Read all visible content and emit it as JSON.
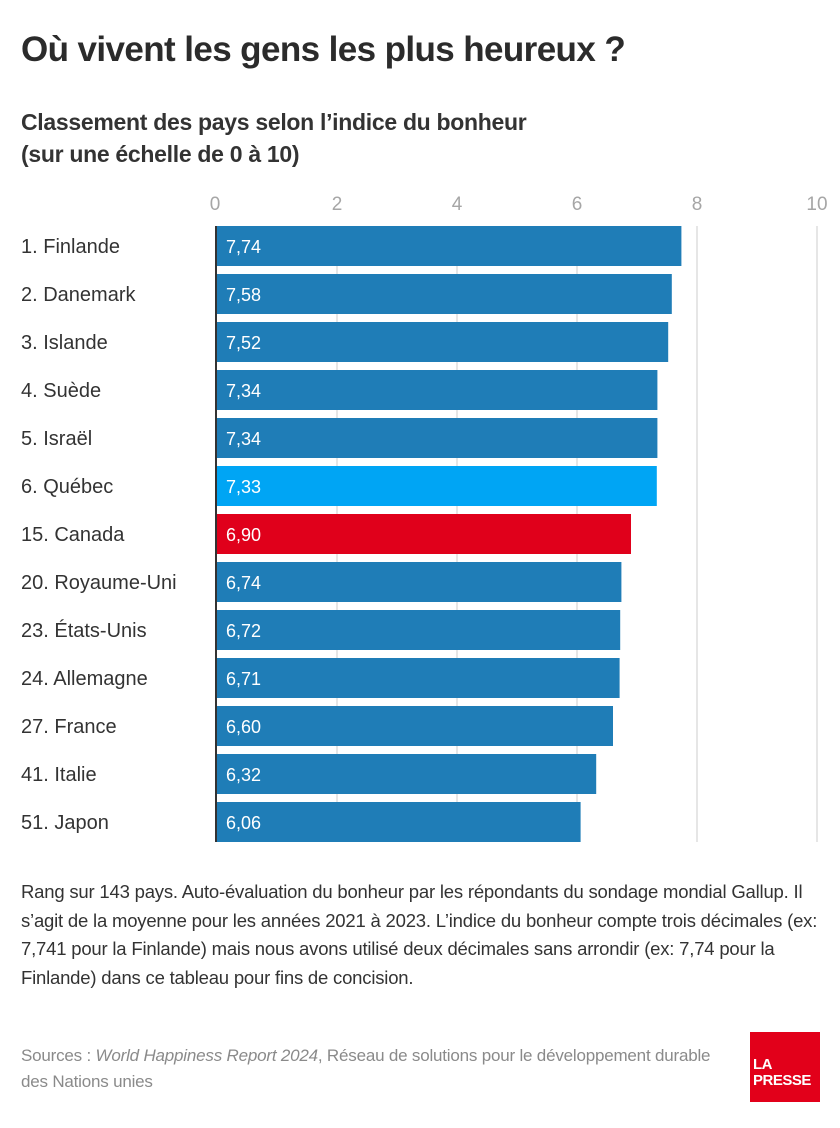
{
  "header": {
    "title": "Où vivent les gens les plus heureux ?",
    "subtitle_line1": "Classement des pays selon l’indice du bonheur",
    "subtitle_line2": "(sur une échelle de 0 à 10)"
  },
  "chart_data": {
    "type": "bar",
    "orientation": "horizontal",
    "title": "Classement des pays selon l’indice du bonheur (sur une échelle de 0 à 10)",
    "xlabel": "",
    "ylabel": "",
    "xlim": [
      0,
      10
    ],
    "xticks": [
      0,
      2,
      4,
      6,
      8,
      10
    ],
    "xtick_labels": [
      "0",
      "2",
      "4",
      "6",
      "8",
      "10"
    ],
    "grid": true,
    "axis_position": "top",
    "categories": [
      "1. Finlande",
      "2. Danemark",
      "3. Islande",
      "4. Suède",
      "5. Israël",
      "6. Québec",
      "15. Canada",
      "20. Royaume-Uni",
      "23. États-Unis",
      "24. Allemagne",
      "27. France",
      "41. Italie",
      "51. Japon"
    ],
    "values": [
      7.74,
      7.58,
      7.52,
      7.34,
      7.34,
      7.33,
      6.9,
      6.74,
      6.72,
      6.71,
      6.6,
      6.32,
      6.06
    ],
    "value_labels": [
      "7,74",
      "7,58",
      "7,52",
      "7,34",
      "7,34",
      "7,33",
      "6,90",
      "6,74",
      "6,72",
      "6,71",
      "6,60",
      "6,32",
      "6,06"
    ],
    "highlight": [
      "default",
      "default",
      "default",
      "default",
      "default",
      "quebec",
      "canada",
      "default",
      "default",
      "default",
      "default",
      "default",
      "default"
    ],
    "colors": {
      "default": "#1f7db7",
      "quebec": "#00a5f4",
      "canada": "#e0001b",
      "grid": "#e6e6e6",
      "axis": "#333333"
    }
  },
  "footer": {
    "note": "Rang sur 143 pays. Auto-évaluation du bonheur par les répondants du sondage mondial Gallup. Il s’agit de la moyenne pour les années 2021 à 2023. L’indice du bonheur compte trois décimales (ex: 7,741 pour la Finlande) mais nous avons utilisé deux décimales sans arrondir (ex: 7,74 pour la Finlande) dans ce tableau pour fins de concision.",
    "sources_prefix": "Sources : ",
    "sources_italic": "World Happiness Report 2024",
    "sources_rest": ", Réseau de solutions pour le développement durable des Nations unies"
  },
  "logo": {
    "line1": "LA",
    "line2": "PRESSE",
    "color": "#e2001a"
  }
}
